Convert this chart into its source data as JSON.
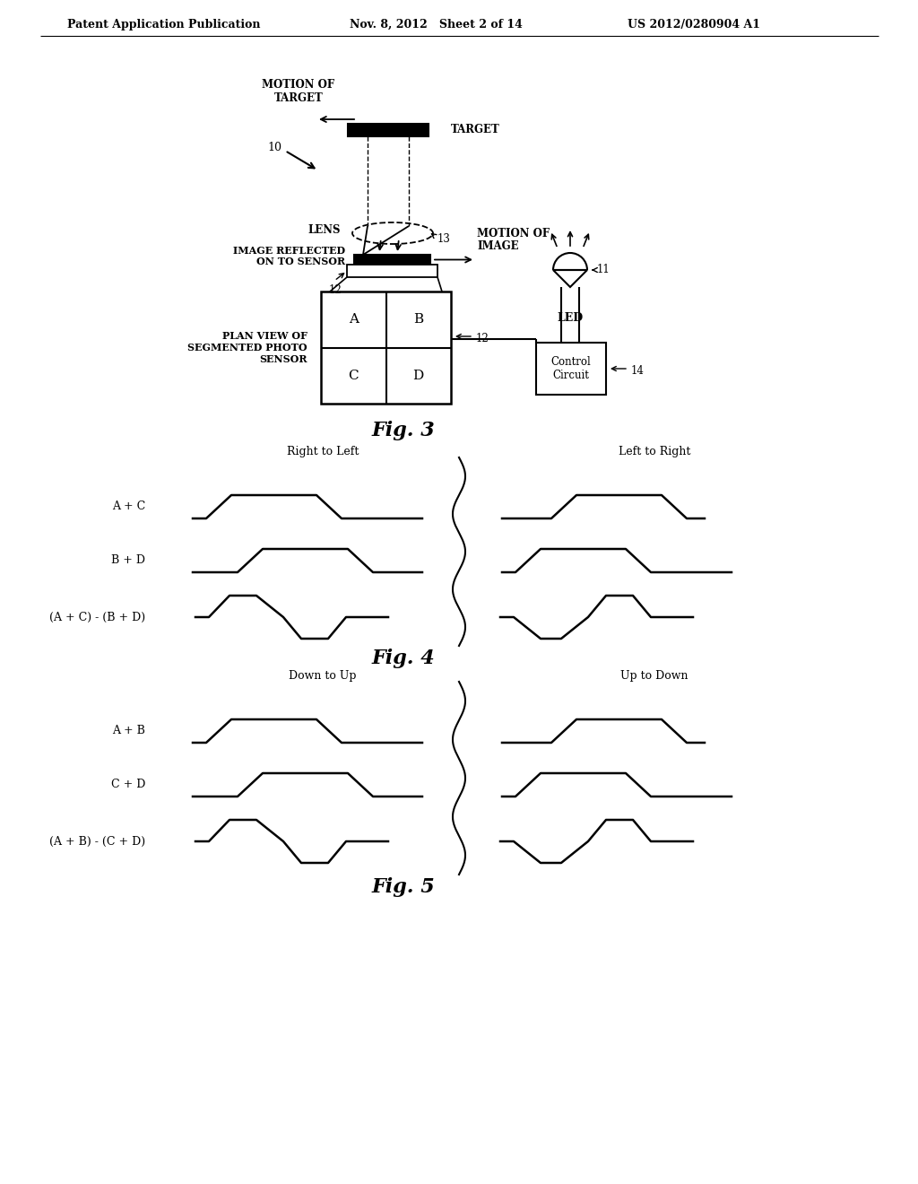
{
  "header_left": "Patent Application Publication",
  "header_mid": "Nov. 8, 2012   Sheet 2 of 14",
  "header_right": "US 2012/0280904 A1",
  "fig3_label": "Fig. 3",
  "fig4_label": "Fig. 4",
  "fig5_label": "Fig. 5",
  "background": "#ffffff",
  "fig4_title_left": "Right to Left",
  "fig4_title_right": "Left to Right",
  "fig4_labels": [
    "A + C",
    "B + D",
    "(A + C) - (B + D)"
  ],
  "fig5_title_left": "Down to Up",
  "fig5_title_right": "Up to Down",
  "fig5_labels": [
    "A + B",
    "C + D",
    "(A + B) - (C + D)"
  ]
}
